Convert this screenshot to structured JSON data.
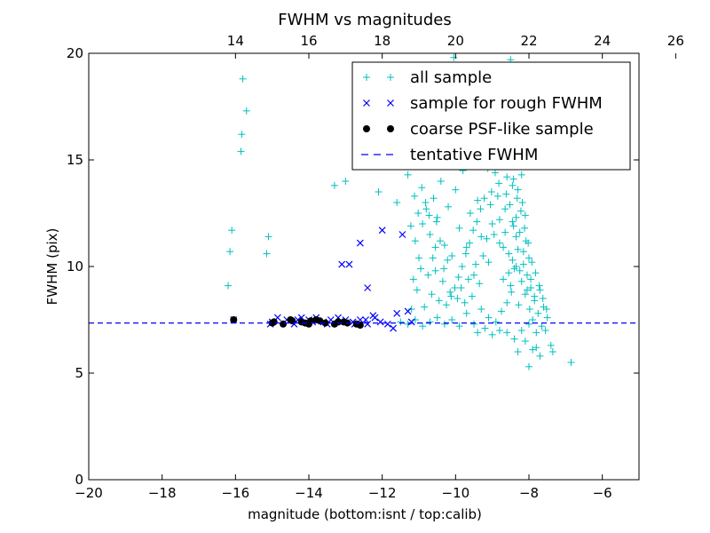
{
  "chart_data": {
    "type": "scatter",
    "title": "FWHM vs magnitudes",
    "xlabel": "magnitude (bottom:isnt / top:calib)",
    "ylabel": "FWHM (pix)",
    "xlim": [
      -20,
      -5
    ],
    "ylim": [
      0,
      20
    ],
    "x_ticks": [
      -20,
      -18,
      -16,
      -14,
      -12,
      -10,
      -8,
      -6
    ],
    "x_tick_labels": [
      "−20",
      "−18",
      "−16",
      "−14",
      "−12",
      "−10",
      "−8",
      "−6"
    ],
    "y_ticks": [
      0,
      5,
      10,
      15,
      20
    ],
    "y_tick_labels": [
      "0",
      "5",
      "10",
      "15",
      "20"
    ],
    "top_axis": {
      "offset": 30,
      "ticks": [
        14,
        16,
        18,
        20,
        22,
        24,
        26
      ],
      "tick_labels": [
        "14",
        "16",
        "18",
        "20",
        "22",
        "24",
        "26"
      ]
    },
    "grid": false,
    "legend_position": "top-right",
    "series": [
      {
        "name": "all sample",
        "marker": "plus",
        "color": "#00bfbf",
        "points": [
          [
            -16.2,
            9.1
          ],
          [
            -16.15,
            10.7
          ],
          [
            -16.1,
            11.7
          ],
          [
            -15.85,
            15.4
          ],
          [
            -15.83,
            16.2
          ],
          [
            -15.8,
            18.8
          ],
          [
            -15.7,
            17.3
          ],
          [
            -15.15,
            10.6
          ],
          [
            -15.1,
            11.4
          ],
          [
            -13.3,
            13.8
          ],
          [
            -13.0,
            14.0
          ],
          [
            -12.1,
            13.5
          ],
          [
            -11.6,
            13.0
          ],
          [
            -11.3,
            14.3
          ],
          [
            -11.0,
            10.4
          ],
          [
            -11.1,
            11.2
          ],
          [
            -10.9,
            12.0
          ],
          [
            -10.8,
            12.7
          ],
          [
            -10.7,
            11.5
          ],
          [
            -10.6,
            13.2
          ],
          [
            -10.55,
            9.8
          ],
          [
            -10.5,
            12.3
          ],
          [
            -10.4,
            14.0
          ],
          [
            -10.3,
            11.0
          ],
          [
            -10.2,
            12.8
          ],
          [
            -10.1,
            10.5
          ],
          [
            -10.0,
            13.6
          ],
          [
            -9.9,
            11.8
          ],
          [
            -9.8,
            14.5
          ],
          [
            -9.7,
            10.9
          ],
          [
            -9.6,
            12.5
          ],
          [
            -9.5,
            9.6
          ],
          [
            -9.4,
            13.1
          ],
          [
            -9.3,
            11.4
          ],
          [
            -9.2,
            14.8
          ],
          [
            -9.1,
            10.2
          ],
          [
            -9.0,
            12.0
          ],
          [
            -8.9,
            15.5
          ],
          [
            -8.85,
            13.3
          ],
          [
            -8.8,
            11.1
          ],
          [
            -8.75,
            16.2
          ],
          [
            -8.7,
            9.4
          ],
          [
            -8.65,
            12.7
          ],
          [
            -8.6,
            14.2
          ],
          [
            -8.55,
            10.6
          ],
          [
            -8.5,
            17.0
          ],
          [
            -8.48,
            8.8
          ],
          [
            -8.45,
            13.8
          ],
          [
            -8.42,
            11.9
          ],
          [
            -8.4,
            9.9
          ],
          [
            -8.38,
            15.0
          ],
          [
            -8.35,
            12.3
          ],
          [
            -8.3,
            10.8
          ],
          [
            -8.28,
            8.2
          ],
          [
            -8.25,
            11.6
          ],
          [
            -8.2,
            9.3
          ],
          [
            -8.18,
            13.0
          ],
          [
            -8.15,
            10.1
          ],
          [
            -8.1,
            8.7
          ],
          [
            -8.08,
            11.2
          ],
          [
            -8.05,
            9.6
          ],
          [
            -8.0,
            10.4
          ],
          [
            -7.98,
            8.0
          ],
          [
            -7.95,
            9.0
          ],
          [
            -7.9,
            7.5
          ],
          [
            -7.85,
            8.4
          ],
          [
            -7.8,
            6.9
          ],
          [
            -7.75,
            7.8
          ],
          [
            -7.7,
            8.9
          ],
          [
            -7.65,
            7.2
          ],
          [
            -7.6,
            8.1
          ],
          [
            -7.55,
            7.0
          ],
          [
            -7.5,
            7.6
          ],
          [
            -7.4,
            6.3
          ],
          [
            -7.35,
            6.0
          ],
          [
            -7.9,
            6.1
          ],
          [
            -8.0,
            5.3
          ],
          [
            -6.85,
            5.5
          ],
          [
            -10.05,
            19.8
          ],
          [
            -8.5,
            19.7
          ],
          [
            -8.6,
            18.5
          ],
          [
            -8.3,
            17.8
          ],
          [
            -8.7,
            16.8
          ],
          [
            -8.9,
            17.5
          ],
          [
            -9.1,
            16.3
          ],
          [
            -9.3,
            15.7
          ],
          [
            -9.6,
            15.2
          ],
          [
            -8.4,
            16.5
          ],
          [
            -8.55,
            14.9
          ],
          [
            -8.2,
            14.3
          ],
          [
            -8.1,
            12.4
          ],
          [
            -8.3,
            13.6
          ],
          [
            -8.45,
            12.1
          ],
          [
            -8.35,
            10.0
          ],
          [
            -8.5,
            9.1
          ],
          [
            -8.6,
            8.3
          ],
          [
            -8.75,
            7.9
          ],
          [
            -8.9,
            7.4
          ],
          [
            -9.1,
            7.6
          ],
          [
            -9.3,
            8.0
          ],
          [
            -9.5,
            7.3
          ],
          [
            -9.7,
            7.8
          ],
          [
            -9.9,
            7.2
          ],
          [
            -10.1,
            7.5
          ],
          [
            -10.3,
            7.3
          ],
          [
            -10.5,
            7.6
          ],
          [
            -10.7,
            7.4
          ],
          [
            -10.9,
            7.2
          ],
          [
            -11.1,
            7.5
          ],
          [
            -11.3,
            7.3
          ],
          [
            -11.5,
            7.4
          ],
          [
            -8.0,
            7.3
          ],
          [
            -8.2,
            7.0
          ],
          [
            -8.4,
            6.6
          ],
          [
            -8.6,
            6.9
          ],
          [
            -8.8,
            7.0
          ],
          [
            -9.0,
            6.8
          ],
          [
            -9.2,
            7.1
          ],
          [
            -9.4,
            6.9
          ],
          [
            -8.1,
            6.5
          ],
          [
            -7.8,
            6.2
          ],
          [
            -8.3,
            6.0
          ],
          [
            -7.7,
            5.8
          ],
          [
            -8.7,
            10.9
          ],
          [
            -8.65,
            11.6
          ],
          [
            -8.55,
            9.7
          ],
          [
            -8.45,
            10.3
          ],
          [
            -8.35,
            11.4
          ],
          [
            -8.25,
            9.8
          ],
          [
            -8.15,
            10.7
          ],
          [
            -8.05,
            8.9
          ],
          [
            -7.95,
            9.4
          ],
          [
            -7.85,
            8.6
          ],
          [
            -8.8,
            12.2
          ],
          [
            -8.95,
            11.5
          ],
          [
            -9.05,
            12.9
          ],
          [
            -9.15,
            11.3
          ],
          [
            -9.25,
            10.5
          ],
          [
            -9.35,
            9.2
          ],
          [
            -9.45,
            10.1
          ],
          [
            -9.55,
            8.6
          ],
          [
            -9.65,
            9.4
          ],
          [
            -9.75,
            8.3
          ],
          [
            -9.85,
            9.0
          ],
          [
            -9.95,
            8.5
          ],
          [
            -10.15,
            8.8
          ],
          [
            -10.25,
            8.2
          ],
          [
            -10.35,
            9.3
          ],
          [
            -10.45,
            8.4
          ],
          [
            -10.65,
            8.7
          ],
          [
            -10.85,
            8.1
          ],
          [
            -11.05,
            8.9
          ],
          [
            -11.2,
            8.0
          ],
          [
            -10.55,
            10.9
          ],
          [
            -10.75,
            9.6
          ],
          [
            -10.95,
            9.9
          ],
          [
            -11.15,
            9.4
          ],
          [
            -8.62,
            13.4
          ],
          [
            -8.52,
            12.9
          ],
          [
            -8.42,
            14.1
          ],
          [
            -8.32,
            13.2
          ],
          [
            -8.22,
            12.6
          ],
          [
            -8.12,
            11.8
          ],
          [
            -8.02,
            11.1
          ],
          [
            -7.92,
            10.2
          ],
          [
            -7.82,
            9.7
          ],
          [
            -7.72,
            9.1
          ],
          [
            -7.62,
            8.5
          ],
          [
            -7.52,
            8.0
          ],
          [
            -8.72,
            14.7
          ],
          [
            -8.82,
            13.9
          ],
          [
            -8.92,
            14.4
          ],
          [
            -9.02,
            13.5
          ],
          [
            -9.12,
            14.6
          ],
          [
            -9.22,
            13.2
          ],
          [
            -9.32,
            12.7
          ],
          [
            -9.42,
            12.1
          ],
          [
            -9.52,
            11.7
          ],
          [
            -9.62,
            11.1
          ],
          [
            -9.72,
            10.6
          ],
          [
            -9.82,
            10.0
          ],
          [
            -9.92,
            9.5
          ],
          [
            -10.02,
            9.0
          ],
          [
            -10.12,
            8.6
          ],
          [
            -10.22,
            10.3
          ],
          [
            -10.32,
            9.9
          ],
          [
            -10.42,
            11.2
          ],
          [
            -10.52,
            12.1
          ],
          [
            -10.62,
            10.4
          ],
          [
            -10.72,
            12.4
          ],
          [
            -10.82,
            13.0
          ],
          [
            -10.92,
            13.7
          ],
          [
            -11.02,
            12.5
          ],
          [
            -11.12,
            13.3
          ],
          [
            -11.22,
            11.9
          ]
        ]
      },
      {
        "name": "sample for rough FWHM",
        "marker": "x",
        "color": "#0000ff",
        "points": [
          [
            -16.05,
            7.5
          ],
          [
            -15.0,
            7.4
          ],
          [
            -14.85,
            7.6
          ],
          [
            -14.6,
            7.5
          ],
          [
            -14.4,
            7.3
          ],
          [
            -14.2,
            7.6
          ],
          [
            -14.0,
            7.5
          ],
          [
            -13.8,
            7.6
          ],
          [
            -13.6,
            7.4
          ],
          [
            -13.4,
            7.5
          ],
          [
            -13.2,
            7.6
          ],
          [
            -13.0,
            7.5
          ],
          [
            -12.8,
            7.4
          ],
          [
            -12.6,
            7.5
          ],
          [
            -12.4,
            7.3
          ],
          [
            -12.2,
            7.6
          ],
          [
            -12.05,
            7.4
          ],
          [
            -11.85,
            7.3
          ],
          [
            -11.7,
            7.1
          ],
          [
            -11.6,
            7.8
          ],
          [
            -11.3,
            7.9
          ],
          [
            -11.2,
            7.4
          ],
          [
            -13.1,
            10.1
          ],
          [
            -12.9,
            10.1
          ],
          [
            -12.6,
            11.1
          ],
          [
            -12.4,
            9.0
          ],
          [
            -12.0,
            11.7
          ],
          [
            -11.45,
            11.5
          ],
          [
            -12.25,
            7.7
          ],
          [
            -12.45,
            7.5
          ],
          [
            -12.75,
            7.3
          ],
          [
            -13.5,
            7.3
          ],
          [
            -13.9,
            7.4
          ],
          [
            -14.3,
            7.5
          ],
          [
            -15.05,
            7.3
          ]
        ]
      },
      {
        "name": "coarse PSF-like sample",
        "marker": "circle",
        "color": "#000000",
        "points": [
          [
            -16.05,
            7.5
          ],
          [
            -15.0,
            7.35
          ],
          [
            -14.95,
            7.4
          ],
          [
            -14.7,
            7.3
          ],
          [
            -14.5,
            7.5
          ],
          [
            -14.45,
            7.45
          ],
          [
            -14.2,
            7.4
          ],
          [
            -14.1,
            7.35
          ],
          [
            -14.0,
            7.3
          ],
          [
            -13.95,
            7.45
          ],
          [
            -13.8,
            7.5
          ],
          [
            -13.7,
            7.45
          ],
          [
            -13.55,
            7.35
          ],
          [
            -13.3,
            7.3
          ],
          [
            -13.2,
            7.4
          ],
          [
            -13.05,
            7.4
          ],
          [
            -12.95,
            7.35
          ],
          [
            -12.7,
            7.3
          ],
          [
            -12.6,
            7.25
          ]
        ]
      },
      {
        "name": "tentative FWHM",
        "marker": "dashed-line",
        "color": "#0000ff",
        "value": 7.35
      }
    ]
  }
}
